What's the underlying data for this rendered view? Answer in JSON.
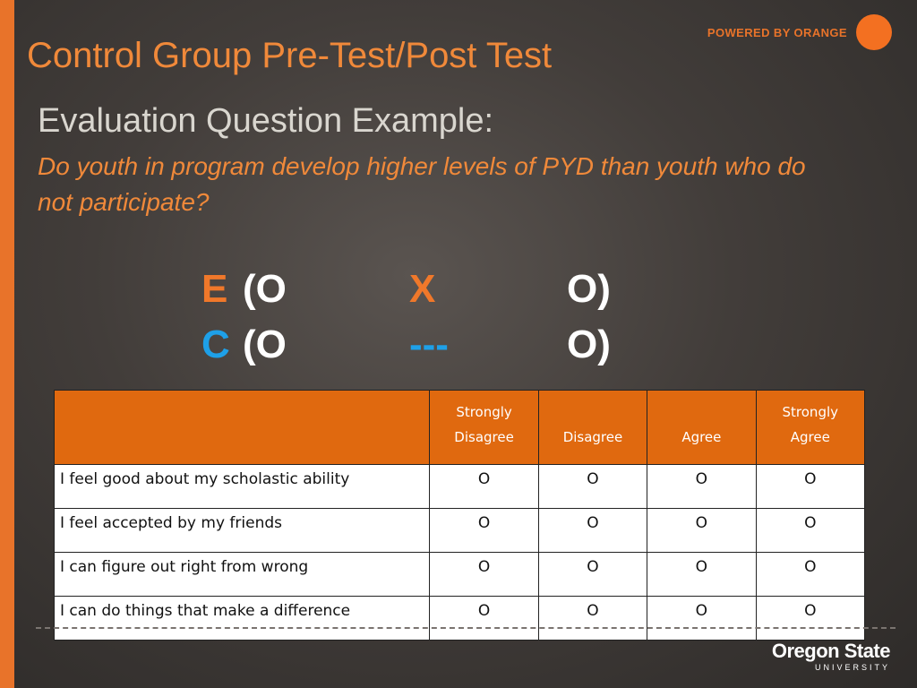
{
  "slide": {
    "title": "Control Group Pre-Test/Post Test",
    "subtitle": "Evaluation Question Example:",
    "question": "Do youth in program develop higher levels of PYD than youth who do not participate?"
  },
  "brand": {
    "tagline": "POWERED BY ORANGE",
    "university_name": "Oregon State",
    "university_sub": "UNIVERSITY"
  },
  "design": {
    "experimental": {
      "group": "E",
      "pre": "(O",
      "treatment": "X",
      "post": "O)"
    },
    "control": {
      "group": "C",
      "pre": "(O",
      "treatment": "---",
      "post": "O)"
    }
  },
  "table": {
    "headers": [
      "",
      "Strongly Disagree",
      "Disagree",
      "Agree",
      "Strongly Agree"
    ],
    "rows": [
      {
        "item": "I feel good about my scholastic ability",
        "marks": [
          "O",
          "O",
          "O",
          "O"
        ]
      },
      {
        "item": "I feel accepted by my friends",
        "marks": [
          "O",
          "O",
          "O",
          "O"
        ]
      },
      {
        "item": "I can figure out right from wrong",
        "marks": [
          "O",
          "O",
          "O",
          "O"
        ]
      },
      {
        "item": "I can do things that make a difference",
        "marks": [
          "O",
          "O",
          "O",
          "O"
        ]
      }
    ]
  },
  "colors": {
    "accent_orange": "#f0893a",
    "header_orange": "#e0690f",
    "control_blue": "#1ea0e8",
    "background": "#423d3a"
  }
}
